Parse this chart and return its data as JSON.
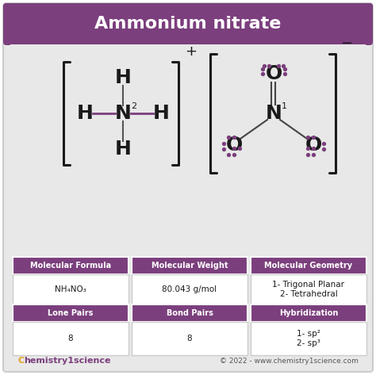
{
  "title": "Ammonium nitrate",
  "title_bg": "#7b3f7d",
  "title_color": "#ffffff",
  "bg_color": "#e8e8e8",
  "outer_bg": "#ffffff",
  "purple": "#7b3f7d",
  "purple_text": "#7b3f7d",
  "black": "#1a1a1a",
  "table_headers": [
    "Molecular Formula",
    "Molecular Weight",
    "Molecular Geometry"
  ],
  "table_row1": [
    "NH₄NO₃",
    "80.043 g/mol",
    "1- Trigonal Planar\n2- Tetrahedral"
  ],
  "table_headers2": [
    "Lone Pairs",
    "Bond Pairs",
    "Hybridization"
  ],
  "table_row2": [
    "8",
    "8",
    "1- sp²\n2- sp³"
  ],
  "footer_left": "Chemistry1science",
  "footer_right": "© 2022 - www.chemistry1science.com"
}
